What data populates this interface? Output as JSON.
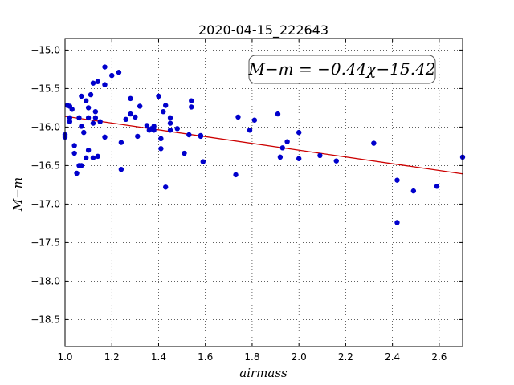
{
  "chart_data": {
    "type": "scatter",
    "title": "2020-04-15_222643",
    "xlabel": "airmass",
    "ylabel": "M−m",
    "xlim": [
      1.0,
      2.7
    ],
    "ylim": [
      -18.85,
      -14.85
    ],
    "y_inverted": true,
    "xticks": [
      1.0,
      1.2,
      1.4,
      1.6,
      1.8,
      2.0,
      2.2,
      2.4,
      2.6
    ],
    "xtick_labels": [
      "1.0",
      "1.2",
      "1.4",
      "1.6",
      "1.8",
      "2.0",
      "2.2",
      "2.4",
      "2.6"
    ],
    "yticks": [
      -15.0,
      -15.5,
      -16.0,
      -16.5,
      -17.0,
      -17.5,
      -18.0,
      -18.5
    ],
    "ytick_labels": [
      "−15.0",
      "−15.5",
      "−16.0",
      "−16.5",
      "−17.0",
      "−17.5",
      "−18.0",
      "−18.5"
    ],
    "grid": true,
    "grid_style": "dotted",
    "point_color": "#0000cc",
    "fit_line_color": "#cc0000",
    "annotation": "M−m = −0.44χ−15.42",
    "annotation_position": "top-right",
    "fit": {
      "slope": -0.44,
      "intercept": -15.42
    },
    "points": [
      {
        "x": 1.0,
        "y": -16.1
      },
      {
        "x": 1.0,
        "y": -16.13
      },
      {
        "x": 1.01,
        "y": -15.72
      },
      {
        "x": 1.02,
        "y": -15.88
      },
      {
        "x": 1.02,
        "y": -15.93
      },
      {
        "x": 1.02,
        "y": -15.73
      },
      {
        "x": 1.03,
        "y": -15.77
      },
      {
        "x": 1.04,
        "y": -16.24
      },
      {
        "x": 1.04,
        "y": -16.34
      },
      {
        "x": 1.05,
        "y": -16.6
      },
      {
        "x": 1.06,
        "y": -16.5
      },
      {
        "x": 1.06,
        "y": -15.88
      },
      {
        "x": 1.07,
        "y": -15.99
      },
      {
        "x": 1.07,
        "y": -15.6
      },
      {
        "x": 1.07,
        "y": -16.5
      },
      {
        "x": 1.08,
        "y": -16.07
      },
      {
        "x": 1.09,
        "y": -15.66
      },
      {
        "x": 1.09,
        "y": -16.4
      },
      {
        "x": 1.1,
        "y": -15.75
      },
      {
        "x": 1.1,
        "y": -16.3
      },
      {
        "x": 1.1,
        "y": -15.88
      },
      {
        "x": 1.11,
        "y": -15.58
      },
      {
        "x": 1.12,
        "y": -15.43
      },
      {
        "x": 1.12,
        "y": -15.95
      },
      {
        "x": 1.12,
        "y": -16.4
      },
      {
        "x": 1.13,
        "y": -15.8
      },
      {
        "x": 1.13,
        "y": -15.88
      },
      {
        "x": 1.14,
        "y": -15.41
      },
      {
        "x": 1.14,
        "y": -16.38
      },
      {
        "x": 1.15,
        "y": -15.93
      },
      {
        "x": 1.17,
        "y": -15.45
      },
      {
        "x": 1.17,
        "y": -16.13
      },
      {
        "x": 1.17,
        "y": -15.22
      },
      {
        "x": 1.2,
        "y": -15.33
      },
      {
        "x": 1.23,
        "y": -15.29
      },
      {
        "x": 1.24,
        "y": -16.55
      },
      {
        "x": 1.24,
        "y": -16.2
      },
      {
        "x": 1.26,
        "y": -15.9
      },
      {
        "x": 1.28,
        "y": -15.63
      },
      {
        "x": 1.28,
        "y": -15.83
      },
      {
        "x": 1.3,
        "y": -15.87
      },
      {
        "x": 1.31,
        "y": -16.12
      },
      {
        "x": 1.32,
        "y": -15.73
      },
      {
        "x": 1.35,
        "y": -15.98
      },
      {
        "x": 1.36,
        "y": -16.04
      },
      {
        "x": 1.37,
        "y": -16.02
      },
      {
        "x": 1.38,
        "y": -15.99
      },
      {
        "x": 1.38,
        "y": -16.04
      },
      {
        "x": 1.4,
        "y": -15.6
      },
      {
        "x": 1.41,
        "y": -16.28
      },
      {
        "x": 1.41,
        "y": -16.15
      },
      {
        "x": 1.42,
        "y": -15.8
      },
      {
        "x": 1.43,
        "y": -15.72
      },
      {
        "x": 1.43,
        "y": -16.78
      },
      {
        "x": 1.45,
        "y": -15.88
      },
      {
        "x": 1.45,
        "y": -15.95
      },
      {
        "x": 1.45,
        "y": -16.04
      },
      {
        "x": 1.48,
        "y": -16.02
      },
      {
        "x": 1.51,
        "y": -16.34
      },
      {
        "x": 1.53,
        "y": -16.1
      },
      {
        "x": 1.54,
        "y": -15.74
      },
      {
        "x": 1.54,
        "y": -15.66
      },
      {
        "x": 1.58,
        "y": -16.11
      },
      {
        "x": 1.58,
        "y": -16.12
      },
      {
        "x": 1.59,
        "y": -16.45
      },
      {
        "x": 1.73,
        "y": -16.62
      },
      {
        "x": 1.74,
        "y": -15.87
      },
      {
        "x": 1.79,
        "y": -16.04
      },
      {
        "x": 1.81,
        "y": -15.91
      },
      {
        "x": 1.91,
        "y": -15.83
      },
      {
        "x": 1.92,
        "y": -16.39
      },
      {
        "x": 1.93,
        "y": -16.27
      },
      {
        "x": 1.95,
        "y": -16.19
      },
      {
        "x": 2.0,
        "y": -16.07
      },
      {
        "x": 2.0,
        "y": -16.41
      },
      {
        "x": 2.09,
        "y": -16.37
      },
      {
        "x": 2.16,
        "y": -16.44
      },
      {
        "x": 2.32,
        "y": -16.21
      },
      {
        "x": 2.42,
        "y": -16.69
      },
      {
        "x": 2.42,
        "y": -17.24
      },
      {
        "x": 2.49,
        "y": -16.83
      },
      {
        "x": 2.59,
        "y": -16.77
      },
      {
        "x": 2.7,
        "y": -16.39
      }
    ]
  }
}
